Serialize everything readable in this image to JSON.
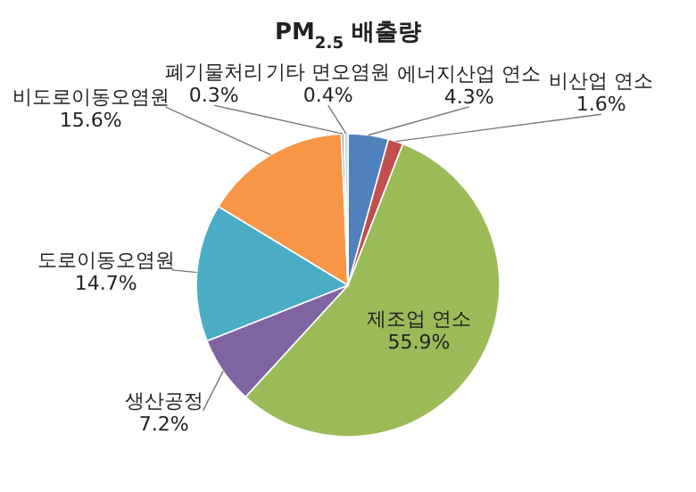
{
  "chart_data": {
    "type": "pie",
    "title": "PM$_{2.5}$ 배출량",
    "categories": [
      "에너지산업 연소",
      "비산업 연소",
      "제조업 연소",
      "생산공정",
      "도로이동오염원",
      "비도로이동오염원",
      "폐기물처리",
      "기타 면오염원"
    ],
    "values": [
      4.3,
      1.6,
      55.9,
      7.2,
      14.7,
      15.6,
      0.3,
      0.4
    ],
    "value_labels": [
      "4.3%",
      "1.6%",
      "55.9%",
      "7.2%",
      "14.7%",
      "15.6%",
      "0.3%",
      "0.4%"
    ],
    "colors": [
      "#4f81bd",
      "#c0504d",
      "#9bbb59",
      "#8064a2",
      "#4bacc6",
      "#f79646",
      "#a5a5a5",
      "#c6d9f1"
    ]
  }
}
